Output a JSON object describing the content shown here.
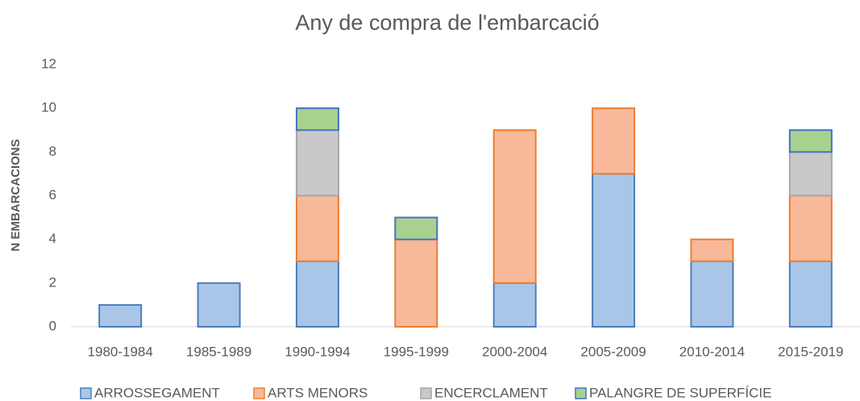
{
  "chart_data": {
    "type": "stacked_bar",
    "title": "Any de compra de l'embarcació",
    "ylabel": "N EMBARCACIONS",
    "categories": [
      "1980-1984",
      "1985-1989",
      "1990-1994",
      "1995-1999",
      "2000-2004",
      "2005-2009",
      "2010-2014",
      "2015-2019"
    ],
    "series": [
      {
        "name": "ARROSSEGAMENT",
        "color": "#a9c6e8",
        "values": [
          1,
          2,
          3,
          0,
          2,
          7,
          3,
          3
        ]
      },
      {
        "name": "ARTS MENORS",
        "color": "#f8b89a",
        "values": [
          0,
          0,
          3,
          4,
          7,
          3,
          1,
          3
        ]
      },
      {
        "name": "ENCERCLAMENT",
        "color": "#c9c9c9",
        "values": [
          0,
          0,
          3,
          0,
          0,
          0,
          0,
          2
        ]
      },
      {
        "name": "PALANGRE DE SUPERFÍCIE",
        "color": "#a9d18e",
        "values": [
          0,
          0,
          1,
          1,
          0,
          0,
          0,
          1
        ]
      }
    ],
    "ylim": [
      0,
      12
    ],
    "yticks": [
      0,
      2,
      4,
      6,
      8,
      10,
      12
    ],
    "grid": false,
    "legend": "bottom"
  }
}
